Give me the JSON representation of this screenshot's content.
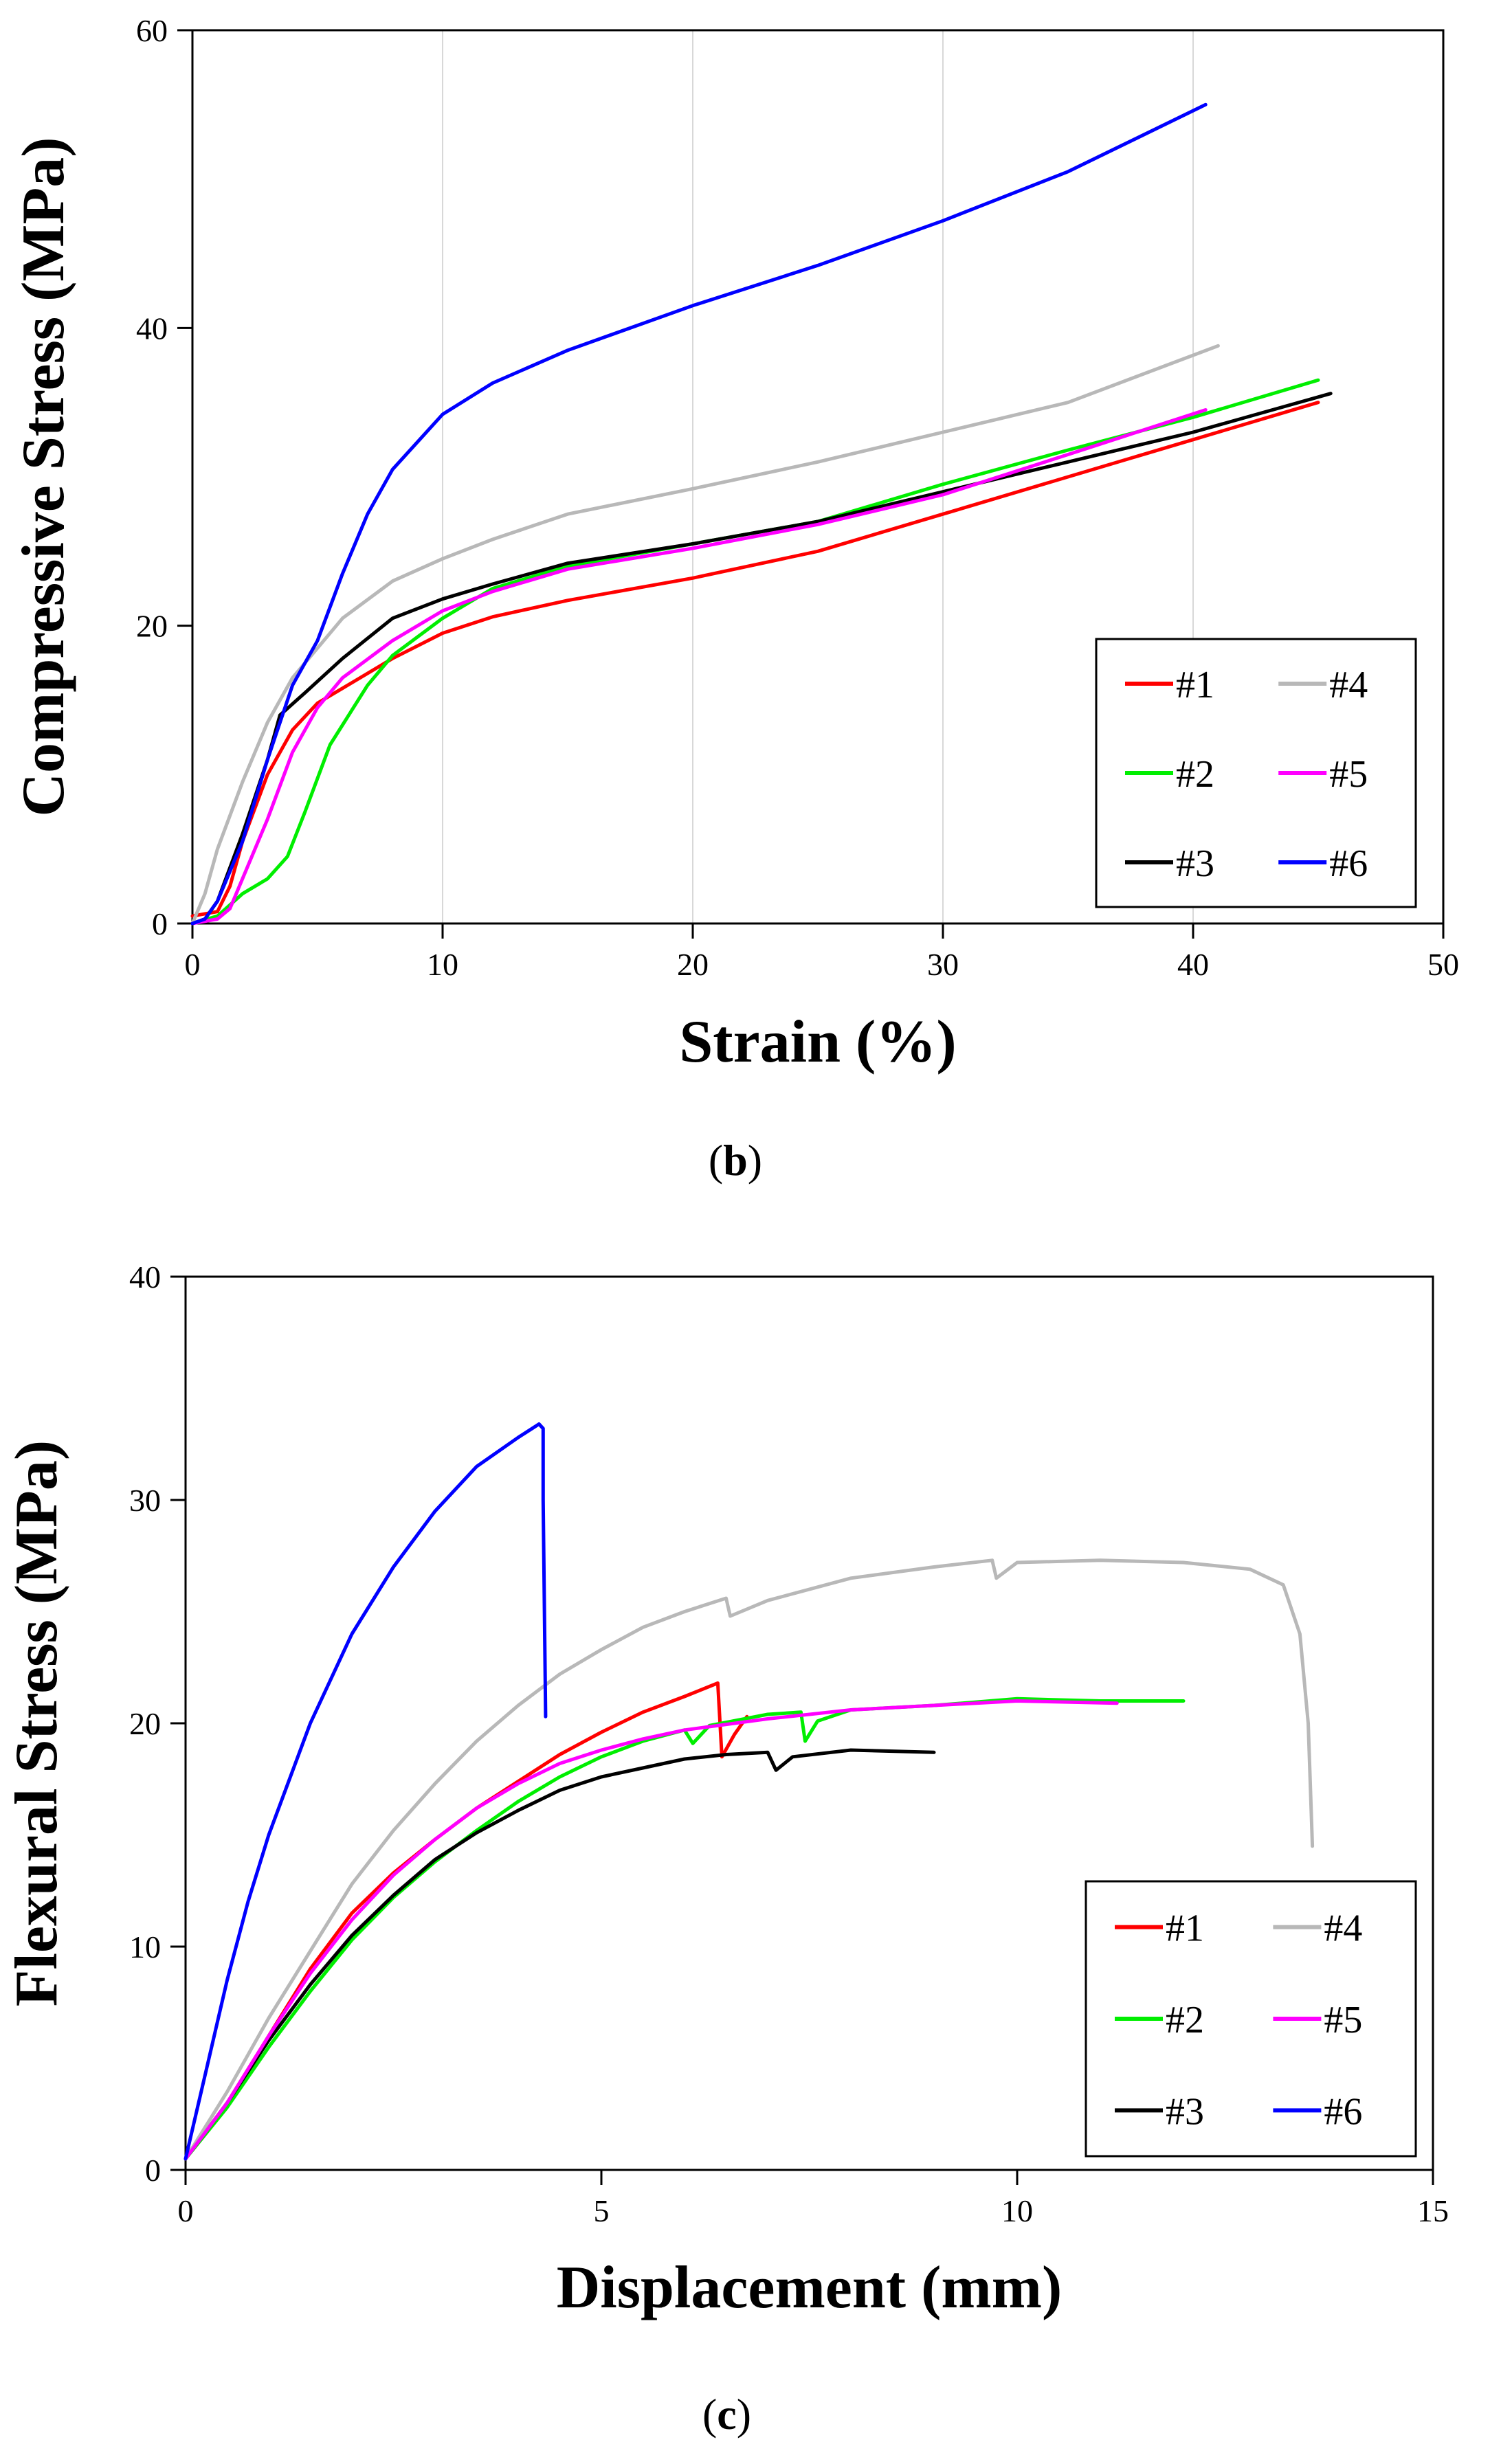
{
  "chart_data": [
    {
      "type": "line",
      "panel_label": "(b)",
      "caption": {
        "open": "(",
        "letter": "b",
        "close": ")"
      },
      "title": "",
      "xlabel": "Strain (%)",
      "ylabel": "Compressive Stress (MPa)",
      "xlim": [
        0,
        50
      ],
      "ylim": [
        0,
        60
      ],
      "xticks": [
        0,
        10,
        20,
        30,
        40,
        50
      ],
      "yticks": [
        0,
        20,
        40,
        60
      ],
      "grid": "vertical",
      "legend_position": "bottom-right",
      "series": [
        {
          "name": "#1",
          "color": "#ff0000",
          "points": [
            [
              0,
              0.5
            ],
            [
              1,
              0.8
            ],
            [
              1.5,
              2.5
            ],
            [
              2,
              5.5
            ],
            [
              3,
              10
            ],
            [
              4,
              13
            ],
            [
              5,
              14.8
            ],
            [
              6,
              15.8
            ],
            [
              8,
              17.8
            ],
            [
              10,
              19.5
            ],
            [
              12,
              20.6
            ],
            [
              15,
              21.7
            ],
            [
              20,
              23.2
            ],
            [
              25,
              25
            ],
            [
              30,
              27.5
            ],
            [
              35,
              30
            ],
            [
              40,
              32.5
            ],
            [
              45,
              35
            ]
          ]
        },
        {
          "name": "#2",
          "color": "#00ee00",
          "points": [
            [
              0,
              0
            ],
            [
              1,
              0.5
            ],
            [
              2,
              2
            ],
            [
              3,
              3
            ],
            [
              3.8,
              4.5
            ],
            [
              4.5,
              7.5
            ],
            [
              5.5,
              12
            ],
            [
              7,
              16
            ],
            [
              8,
              18
            ],
            [
              10,
              20.5
            ],
            [
              12,
              22.5
            ],
            [
              15,
              24
            ],
            [
              20,
              25.5
            ],
            [
              25,
              27
            ],
            [
              30,
              29.5
            ],
            [
              35,
              31.8
            ],
            [
              40,
              34
            ],
            [
              45,
              36.5
            ]
          ]
        },
        {
          "name": "#3",
          "color": "#000000",
          "points": [
            [
              0,
              0
            ],
            [
              0.5,
              0.3
            ],
            [
              1,
              1.5
            ],
            [
              2,
              6
            ],
            [
              3,
              11
            ],
            [
              3.5,
              14
            ],
            [
              4.5,
              15.5
            ],
            [
              6,
              17.8
            ],
            [
              8,
              20.5
            ],
            [
              10,
              21.8
            ],
            [
              12,
              22.8
            ],
            [
              15,
              24.2
            ],
            [
              20,
              25.5
            ],
            [
              25,
              27
            ],
            [
              30,
              29
            ],
            [
              35,
              31
            ],
            [
              40,
              33
            ],
            [
              45.5,
              35.6
            ]
          ]
        },
        {
          "name": "#4",
          "color": "#b8b8b8",
          "points": [
            [
              0,
              0
            ],
            [
              0.5,
              2
            ],
            [
              1,
              5
            ],
            [
              2,
              9.5
            ],
            [
              3,
              13.5
            ],
            [
              4,
              16.5
            ],
            [
              5,
              18.5
            ],
            [
              6,
              20.5
            ],
            [
              8,
              23
            ],
            [
              10,
              24.5
            ],
            [
              12,
              25.8
            ],
            [
              15,
              27.5
            ],
            [
              20,
              29.2
            ],
            [
              25,
              31
            ],
            [
              30,
              33
            ],
            [
              35,
              35
            ],
            [
              41,
              38.8
            ]
          ]
        },
        {
          "name": "#5",
          "color": "#ff00ff",
          "points": [
            [
              0,
              0
            ],
            [
              1,
              0.3
            ],
            [
              1.5,
              1
            ],
            [
              2,
              3
            ],
            [
              3,
              7
            ],
            [
              4,
              11.5
            ],
            [
              5,
              14.5
            ],
            [
              6,
              16.5
            ],
            [
              8,
              19
            ],
            [
              10,
              21
            ],
            [
              12,
              22.3
            ],
            [
              15,
              23.8
            ],
            [
              20,
              25.2
            ],
            [
              25,
              26.8
            ],
            [
              30,
              28.8
            ],
            [
              35,
              31.5
            ],
            [
              40.5,
              34.5
            ]
          ]
        },
        {
          "name": "#6",
          "color": "#0000ff",
          "points": [
            [
              0,
              0
            ],
            [
              0.5,
              0.3
            ],
            [
              1,
              1.5
            ],
            [
              2,
              5.5
            ],
            [
              3,
              11
            ],
            [
              4,
              16
            ],
            [
              5,
              19
            ],
            [
              6,
              23.5
            ],
            [
              7,
              27.5
            ],
            [
              8,
              30.5
            ],
            [
              10,
              34.2
            ],
            [
              12,
              36.3
            ],
            [
              15,
              38.5
            ],
            [
              20,
              41.5
            ],
            [
              25,
              44.2
            ],
            [
              30,
              47.2
            ],
            [
              35,
              50.5
            ],
            [
              40.5,
              55
            ]
          ]
        }
      ]
    },
    {
      "type": "line",
      "panel_label": "(c)",
      "caption": {
        "open": "(",
        "letter": "c",
        "close": ")"
      },
      "title": "",
      "xlabel": "Displacement (mm)",
      "ylabel": "Flexural Stress (MPa)",
      "xlim": [
        0,
        15
      ],
      "ylim": [
        0,
        40
      ],
      "xticks": [
        0,
        5,
        10,
        15
      ],
      "yticks": [
        0,
        10,
        20,
        30,
        40
      ],
      "grid": "none",
      "legend_position": "bottom-right",
      "series": [
        {
          "name": "#1",
          "color": "#ff0000",
          "points": [
            [
              0,
              0.5
            ],
            [
              0.5,
              3
            ],
            [
              1,
              6
            ],
            [
              1.5,
              9
            ],
            [
              2,
              11.5
            ],
            [
              2.5,
              13.3
            ],
            [
              3,
              14.8
            ],
            [
              3.5,
              16.2
            ],
            [
              4,
              17.4
            ],
            [
              4.5,
              18.6
            ],
            [
              5,
              19.6
            ],
            [
              5.5,
              20.5
            ],
            [
              6,
              21.2
            ],
            [
              6.4,
              21.8
            ],
            [
              6.45,
              18.5
            ],
            [
              6.6,
              19.5
            ],
            [
              6.75,
              20.3
            ]
          ]
        },
        {
          "name": "#2",
          "color": "#00ee00",
          "points": [
            [
              0,
              0.5
            ],
            [
              0.5,
              2.8
            ],
            [
              1,
              5.5
            ],
            [
              1.5,
              8
            ],
            [
              2,
              10.3
            ],
            [
              2.5,
              12.2
            ],
            [
              3,
              13.8
            ],
            [
              3.5,
              15.2
            ],
            [
              4,
              16.5
            ],
            [
              4.5,
              17.6
            ],
            [
              5,
              18.5
            ],
            [
              5.5,
              19.2
            ],
            [
              6,
              19.7
            ],
            [
              6.1,
              19.1
            ],
            [
              6.3,
              19.9
            ],
            [
              7,
              20.4
            ],
            [
              7.4,
              20.5
            ],
            [
              7.45,
              19.2
            ],
            [
              7.6,
              20.1
            ],
            [
              8,
              20.6
            ],
            [
              9,
              20.8
            ],
            [
              10,
              21.1
            ],
            [
              11,
              21
            ],
            [
              12,
              21
            ]
          ]
        },
        {
          "name": "#3",
          "color": "#000000",
          "points": [
            [
              0,
              0.5
            ],
            [
              0.5,
              3
            ],
            [
              1,
              5.8
            ],
            [
              1.5,
              8.3
            ],
            [
              2,
              10.5
            ],
            [
              2.5,
              12.3
            ],
            [
              3,
              13.9
            ],
            [
              3.5,
              15.1
            ],
            [
              4,
              16.1
            ],
            [
              4.5,
              17
            ],
            [
              5,
              17.6
            ],
            [
              5.5,
              18
            ],
            [
              6,
              18.4
            ],
            [
              6.5,
              18.6
            ],
            [
              7,
              18.7
            ],
            [
              7.1,
              17.9
            ],
            [
              7.3,
              18.5
            ],
            [
              8,
              18.8
            ],
            [
              9,
              18.7
            ]
          ]
        },
        {
          "name": "#4",
          "color": "#b8b8b8",
          "points": [
            [
              0,
              0.5
            ],
            [
              0.5,
              3.5
            ],
            [
              1,
              6.8
            ],
            [
              1.5,
              9.8
            ],
            [
              2,
              12.8
            ],
            [
              2.5,
              15.2
            ],
            [
              3,
              17.3
            ],
            [
              3.5,
              19.2
            ],
            [
              4,
              20.8
            ],
            [
              4.5,
              22.2
            ],
            [
              5,
              23.3
            ],
            [
              5.5,
              24.3
            ],
            [
              6,
              25
            ],
            [
              6.5,
              25.6
            ],
            [
              6.55,
              24.8
            ],
            [
              7,
              25.5
            ],
            [
              8,
              26.5
            ],
            [
              9,
              27
            ],
            [
              9.7,
              27.3
            ],
            [
              9.75,
              26.5
            ],
            [
              10,
              27.2
            ],
            [
              11,
              27.3
            ],
            [
              12,
              27.2
            ],
            [
              12.8,
              26.9
            ],
            [
              13.2,
              26.2
            ],
            [
              13.4,
              24
            ],
            [
              13.5,
              20
            ],
            [
              13.55,
              14.5
            ]
          ]
        },
        {
          "name": "#5",
          "color": "#ff00ff",
          "points": [
            [
              0,
              0.5
            ],
            [
              0.5,
              3
            ],
            [
              1,
              6
            ],
            [
              1.5,
              8.8
            ],
            [
              2,
              11.2
            ],
            [
              2.5,
              13.2
            ],
            [
              3,
              14.8
            ],
            [
              3.5,
              16.2
            ],
            [
              4,
              17.3
            ],
            [
              4.5,
              18.2
            ],
            [
              5,
              18.8
            ],
            [
              5.5,
              19.3
            ],
            [
              6,
              19.7
            ],
            [
              7,
              20.2
            ],
            [
              8,
              20.6
            ],
            [
              9,
              20.8
            ],
            [
              10,
              21
            ],
            [
              11.2,
              20.9
            ]
          ]
        },
        {
          "name": "#6",
          "color": "#0000ff",
          "points": [
            [
              0,
              0.5
            ],
            [
              0.25,
              4.5
            ],
            [
              0.5,
              8.5
            ],
            [
              0.75,
              12
            ],
            [
              1,
              15
            ],
            [
              1.5,
              20
            ],
            [
              2,
              24
            ],
            [
              2.5,
              27
            ],
            [
              3,
              29.5
            ],
            [
              3.5,
              31.5
            ],
            [
              4,
              32.8
            ],
            [
              4.25,
              33.4
            ],
            [
              4.3,
              33.2
            ],
            [
              4.3,
              30
            ],
            [
              4.33,
              20.3
            ]
          ]
        }
      ]
    }
  ]
}
